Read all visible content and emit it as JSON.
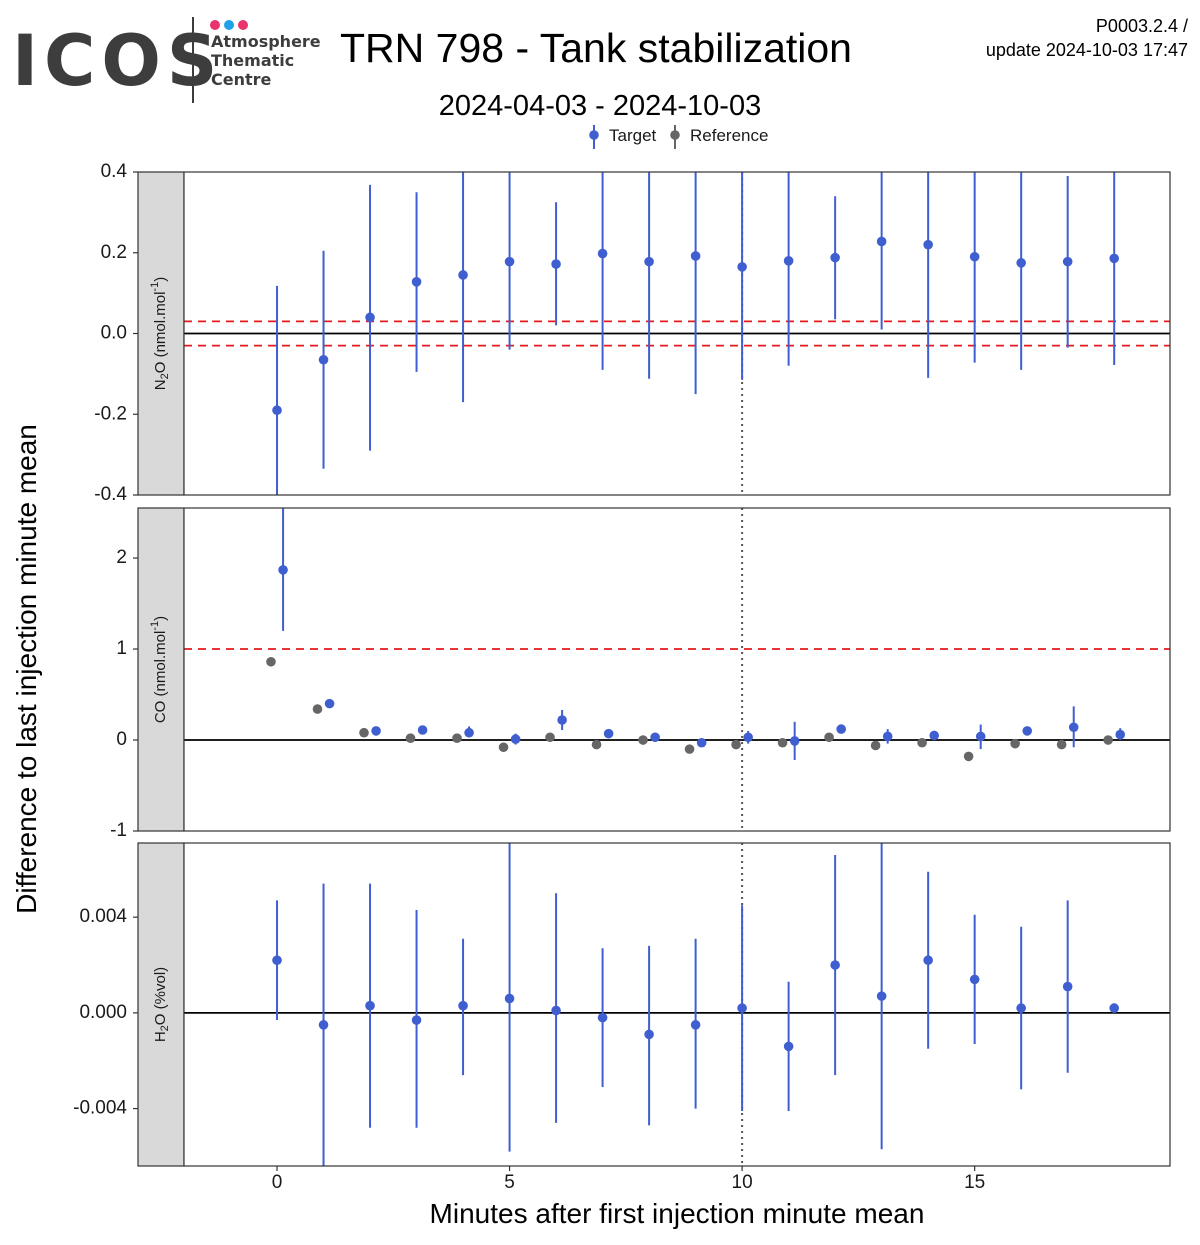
{
  "header": {
    "logo_text": "ICOS",
    "logo_lines": [
      "Atmosphere",
      "Thematic",
      "Centre"
    ],
    "logo_dot_colors": [
      "#e8336d",
      "#1ea1e6",
      "#e8336d"
    ],
    "title": "TRN 798 - Tank stabilization",
    "subtitle": "2024-04-03 - 2024-10-03",
    "product_id": "P0003.2.4 /",
    "update_line": "update  2024-10-03 17:47"
  },
  "chart_data": {
    "type": "scatter",
    "style": "point-with-errorbar, faceted",
    "legend": {
      "placement": "top",
      "entries": [
        {
          "name": "Target",
          "color": "#3f5fd0"
        },
        {
          "name": "Reference",
          "color": "#666666"
        }
      ]
    },
    "xlabel": "Minutes after first injection minute mean",
    "ylabel": "Difference to last injection minute mean",
    "xlim": [
      -2.0,
      19.2
    ],
    "xticks": [
      0,
      5,
      10,
      15
    ],
    "vline_x": 10,
    "grid": false,
    "facets": [
      {
        "label_main": "N",
        "label_sub": "2",
        "label_tail": "O (nmol.mol",
        "label_sup": "-1",
        "label_end": ")",
        "ylim": [
          -0.4,
          0.4
        ],
        "yticks": [
          0.4,
          0.2,
          0.0,
          -0.2,
          -0.4
        ],
        "ytick_labels": [
          "0.4",
          "0.2",
          "0.0",
          "-0.2",
          "-0.4"
        ],
        "hline": 0,
        "thresholds": [
          0.03,
          -0.03
        ],
        "series": [
          {
            "name": "Target",
            "x": [
              0,
              1,
              2,
              3,
              4,
              5,
              6,
              7,
              8,
              9,
              10,
              11,
              12,
              13,
              14,
              15,
              16,
              17,
              18
            ],
            "y": [
              -0.19,
              -0.065,
              0.04,
              0.128,
              0.145,
              0.178,
              0.172,
              0.198,
              0.178,
              0.192,
              0.165,
              0.18,
              0.188,
              0.228,
              0.22,
              0.19,
              0.175,
              0.178,
              0.186
            ],
            "ymin": [
              -0.4,
              -0.335,
              -0.29,
              -0.095,
              -0.17,
              -0.04,
              0.02,
              -0.09,
              -0.112,
              -0.15,
              -0.115,
              -0.08,
              0.035,
              0.01,
              -0.11,
              -0.072,
              -0.09,
              -0.035,
              -0.078
            ],
            "ymax": [
              0.118,
              0.205,
              0.368,
              0.35,
              0.4,
              0.4,
              0.325,
              0.4,
              0.4,
              0.4,
              0.4,
              0.4,
              0.34,
              0.4,
              0.4,
              0.4,
              0.4,
              0.39,
              0.4
            ]
          }
        ]
      },
      {
        "label_main": "CO (nmol.mol",
        "label_sub": "",
        "label_tail": "",
        "label_sup": "-1",
        "label_end": ")",
        "ylim": [
          -1.0,
          2.55
        ],
        "yticks": [
          2,
          1,
          0,
          -1
        ],
        "ytick_labels": [
          "2",
          "1",
          "0",
          "-1"
        ],
        "hline": 0,
        "thresholds": [
          1.0
        ],
        "series": [
          {
            "name": "Target",
            "x": [
              0.13,
              1.13,
              2.13,
              3.13,
              4.13,
              5.13,
              6.13,
              7.13,
              8.13,
              9.13,
              10.13,
              11.13,
              12.13,
              13.13,
              14.13,
              15.13,
              16.13,
              17.13,
              18.13
            ],
            "y": [
              1.87,
              0.4,
              0.1,
              0.11,
              0.08,
              0.01,
              0.22,
              0.07,
              0.03,
              -0.03,
              0.03,
              -0.01,
              0.12,
              0.04,
              0.05,
              0.04,
              0.1,
              0.14,
              0.06
            ],
            "ymin": [
              1.2,
              0.4,
              0.1,
              0.11,
              0.03,
              -0.05,
              0.11,
              0.07,
              0.0,
              -0.06,
              -0.04,
              -0.22,
              0.12,
              -0.04,
              0.05,
              -0.1,
              0.1,
              -0.08,
              0.0
            ],
            "ymax": [
              2.55,
              0.4,
              0.1,
              0.11,
              0.15,
              0.07,
              0.33,
              0.07,
              0.06,
              0.0,
              0.1,
              0.2,
              0.12,
              0.12,
              0.05,
              0.17,
              0.1,
              0.37,
              0.13
            ]
          },
          {
            "name": "Reference",
            "x": [
              -0.13,
              0.87,
              1.87,
              2.87,
              3.87,
              4.87,
              5.87,
              6.87,
              7.87,
              8.87,
              9.87,
              10.87,
              11.87,
              12.87,
              13.87,
              14.87,
              15.87,
              16.87,
              17.87
            ],
            "y": [
              0.86,
              0.34,
              0.08,
              0.02,
              0.02,
              -0.08,
              0.03,
              -0.05,
              0.0,
              -0.1,
              -0.05,
              -0.03,
              0.03,
              -0.06,
              -0.03,
              -0.18,
              -0.04,
              -0.05,
              0.0
            ],
            "ymin": [
              0.86,
              0.34,
              0.08,
              0.02,
              0.02,
              -0.08,
              0.03,
              -0.05,
              0.0,
              -0.1,
              -0.05,
              -0.03,
              0.03,
              -0.06,
              -0.03,
              -0.18,
              -0.04,
              -0.05,
              0.0
            ],
            "ymax": [
              0.86,
              0.34,
              0.08,
              0.02,
              0.02,
              -0.08,
              0.03,
              -0.05,
              0.0,
              -0.1,
              -0.05,
              -0.03,
              0.03,
              -0.06,
              -0.03,
              -0.18,
              -0.04,
              -0.05,
              0.0
            ]
          }
        ]
      },
      {
        "label_main": "H",
        "label_sub": "2",
        "label_tail": "O (%vol)",
        "label_sup": "",
        "label_end": "",
        "ylim": [
          -0.0064,
          0.0071
        ],
        "yticks": [
          0.004,
          0.0,
          -0.004
        ],
        "ytick_labels": [
          "0.004",
          "0.000",
          "-0.004"
        ],
        "hline": 0,
        "thresholds": [],
        "series": [
          {
            "name": "Target",
            "x": [
              0,
              1,
              2,
              3,
              4,
              5,
              6,
              7,
              8,
              9,
              10,
              11,
              12,
              13,
              14,
              15,
              16,
              17,
              18
            ],
            "y": [
              0.0022,
              -0.0005,
              0.0003,
              -0.0003,
              0.0003,
              0.0006,
              0.0001,
              -0.0002,
              -0.0009,
              -0.0005,
              0.0002,
              -0.0014,
              0.002,
              0.0007,
              0.0022,
              0.0014,
              0.0002,
              0.0011,
              0.0002
            ],
            "ymin": [
              -0.0003,
              -0.0064,
              -0.0048,
              -0.0048,
              -0.0026,
              -0.0058,
              -0.0046,
              -0.0031,
              -0.0047,
              -0.004,
              -0.0041,
              -0.0041,
              -0.0026,
              -0.0057,
              -0.0015,
              -0.0013,
              -0.0032,
              -0.0025,
              0.0
            ],
            "ymax": [
              0.0047,
              0.0054,
              0.0054,
              0.0043,
              0.0031,
              0.0071,
              0.005,
              0.0027,
              0.0028,
              0.0031,
              0.0045,
              0.0013,
              0.0066,
              0.0071,
              0.0059,
              0.0041,
              0.0036,
              0.0047,
              0.0004
            ]
          }
        ]
      }
    ]
  }
}
